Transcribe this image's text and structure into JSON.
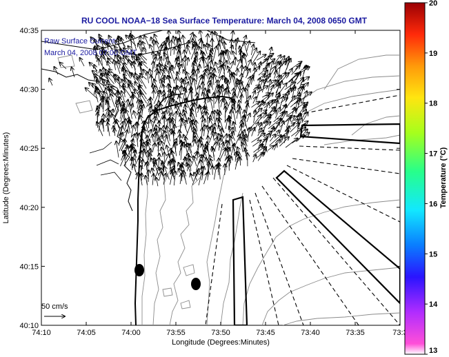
{
  "title": "RU COOL  NOAA−18  Sea Surface Temperature:  March 04, 2008 0650 GMT",
  "annotation": {
    "line1": "Raw Surface Current:",
    "line2": "March 04, 2008 07:00 GMT"
  },
  "scale_label": "50 cm/s",
  "xlabel": "Longitude (Degrees:Minutes)",
  "ylabel": "Latitude (Degrees:Minutes)",
  "x_ticks": [
    "74:10",
    "74:05",
    "74:00",
    "73:55",
    "73:50",
    "73:45",
    "73:40",
    "73:35",
    "73:3"
  ],
  "y_ticks": [
    "40:35",
    "40:30",
    "40:25",
    "40:20",
    "40:15",
    "40:10"
  ],
  "colorbar": {
    "label": "Temperature (°C)",
    "ticks": [
      "20",
      "19",
      "18",
      "17",
      "16",
      "15",
      "14",
      "13"
    ],
    "min": 13,
    "max": 20,
    "colors": [
      "#ff4fd8",
      "#b02cff",
      "#2a14ff",
      "#0a7dff",
      "#12e8ff",
      "#27ff8a",
      "#a6ff1c",
      "#ffe510",
      "#ff9a0a",
      "#ff2a0a",
      "#9a0004"
    ]
  }
}
